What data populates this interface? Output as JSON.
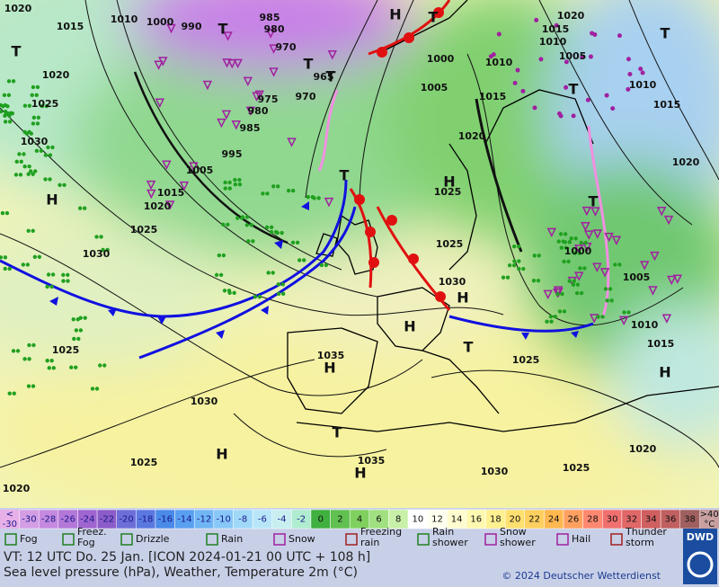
{
  "map": {
    "pressure_labels": [
      1020,
      1015,
      1010,
      1000,
      990,
      985,
      980,
      970,
      1000,
      1010,
      1020,
      1015,
      1010,
      1005,
      1010,
      1015,
      1020,
      1005,
      1015,
      1020,
      1025,
      1030,
      975,
      980,
      985,
      970,
      965,
      995,
      1005,
      1015,
      1020,
      1025,
      1030,
      1025,
      1025,
      1030,
      1000,
      1005,
      1010,
      1015,
      1020,
      1025,
      1025,
      1035,
      1030,
      1025,
      1020,
      1035,
      1030,
      1025,
      1020
    ],
    "systems": [
      "T",
      "T",
      "T",
      "T",
      "T",
      "H",
      "T",
      "H",
      "T",
      "H",
      "T",
      "T",
      "H",
      "H",
      "T",
      "H",
      "H",
      "T",
      "H",
      "H"
    ]
  },
  "temperature_scale": {
    "low_marks": [
      "<",
      "-30"
    ],
    "ticks": [
      -30,
      -28,
      -26,
      -24,
      -22,
      -20,
      -18,
      -16,
      -14,
      -12,
      -10,
      -8,
      -6,
      -4,
      -2,
      0,
      2,
      4,
      6,
      8,
      10,
      12,
      14,
      16,
      18,
      20,
      22,
      24,
      26,
      28,
      30,
      32,
      34,
      36,
      38
    ],
    "colors": [
      "#d49ee4",
      "#c58ae0",
      "#b378d8",
      "#a066d0",
      "#8c5cc8",
      "#6e6ed8",
      "#5a78e0",
      "#4a8ae8",
      "#5aa0f0",
      "#70b6f4",
      "#88c8f8",
      "#a0d8f8",
      "#b8e6f8",
      "#c8eef0",
      "#b0ecd0",
      "#40b040",
      "#60c050",
      "#80d060",
      "#a0e080",
      "#c8f0a8",
      "#ffffff",
      "#fffff0",
      "#fffcd0",
      "#fff8b0",
      "#fff090",
      "#ffe070",
      "#ffd060",
      "#ffb850",
      "#ffa060",
      "#ff8870",
      "#f07070",
      "#e06868",
      "#d06060",
      "#c06060",
      "#a06060"
    ],
    "low_color": "#e8b0e8",
    "high_marks": [
      ">40",
      "°C"
    ],
    "high_color": "#c8a0a0"
  },
  "weather_legend": [
    "Fog",
    "Freez. Fog",
    "Drizzle",
    "Rain",
    "Snow",
    "Freezing rain",
    "Rain shower",
    "Snow shower",
    "Hail",
    "Thunder storm"
  ],
  "logo": "DWD",
  "footer": {
    "valid_time": "VT: 12 UTC Do.  25 Jan. [ICON 2024-01-21  00 UTC + 108 h]",
    "description": "Sea level pressure (hPa), Weather, Temperature 2m (°C)",
    "copyright": "© 2024 Deutscher Wetterdienst"
  }
}
